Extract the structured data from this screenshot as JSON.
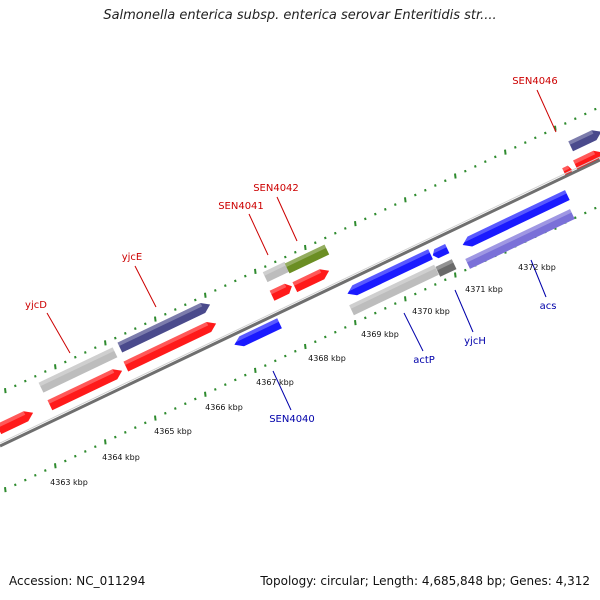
{
  "title": "Salmonella enterica subsp. enterica serovar Enteritidis str....",
  "accession": "Accession: NC_011294",
  "summary": "Topology: circular; Length: 4,685,848 bp; Genes: 4,312",
  "colors": {
    "forward_cds": "#ff1a1a",
    "reverse_cds": "#1a1aff",
    "gene_gray": "#bdbdbd",
    "forward_navy": "#4a4a8c",
    "reverse_lavender": "#7a70d8",
    "olive": "#6b8e23",
    "dark_gray": "#6a6a6a",
    "backbone": "#8a8a8a",
    "tick_green": "#2e8b2e",
    "forward_label": "#cc0000",
    "reverse_label": "#0000aa"
  },
  "scale": {
    "ticks": [
      {
        "label": "4363 kbp"
      },
      {
        "label": "4364 kbp"
      },
      {
        "label": "4365 kbp"
      },
      {
        "label": "4366 kbp"
      },
      {
        "label": "4367 kbp"
      },
      {
        "label": "4368 kbp"
      },
      {
        "label": "4369 kbp"
      },
      {
        "label": "4370 kbp"
      },
      {
        "label": "4371 kbp"
      },
      {
        "label": "4372 kbp"
      }
    ]
  },
  "genes": [
    {
      "id": "yjcD",
      "label": "yjcD",
      "strand": "forward"
    },
    {
      "id": "yjcE",
      "label": "yjcE",
      "strand": "forward"
    },
    {
      "id": "SEN4041",
      "label": "SEN4041",
      "strand": "forward"
    },
    {
      "id": "SEN4042",
      "label": "SEN4042",
      "strand": "forward"
    },
    {
      "id": "SEN4046",
      "label": "SEN4046",
      "strand": "forward"
    },
    {
      "id": "SEN4040",
      "label": "SEN4040",
      "strand": "reverse"
    },
    {
      "id": "actP",
      "label": "actP",
      "strand": "reverse"
    },
    {
      "id": "yjcH",
      "label": "yjcH",
      "strand": "reverse"
    },
    {
      "id": "acs",
      "label": "acs",
      "strand": "reverse"
    }
  ]
}
